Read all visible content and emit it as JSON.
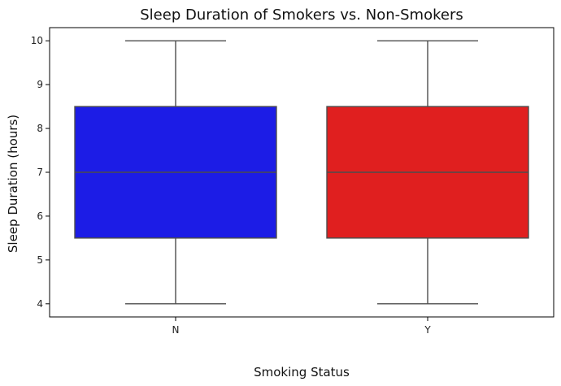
{
  "chart_data": {
    "type": "box",
    "title": "Sleep Duration of Smokers vs. Non-Smokers",
    "xlabel": "Smoking Status",
    "ylabel": "Sleep Duration (hours)",
    "categories": [
      "N",
      "Y"
    ],
    "boxes": [
      {
        "category": "N",
        "min": 4,
        "q1": 5.5,
        "median": 7,
        "q3": 8.5,
        "max": 10,
        "color": "#1c1ce6"
      },
      {
        "category": "Y",
        "min": 4,
        "q1": 5.5,
        "median": 7,
        "q3": 8.5,
        "max": 10,
        "color": "#e01f1f"
      }
    ],
    "ylim": [
      3.7,
      10.3
    ],
    "yticks": [
      4,
      5,
      6,
      7,
      8,
      9,
      10
    ],
    "grid": false,
    "line_color": "#4d4d4d"
  }
}
